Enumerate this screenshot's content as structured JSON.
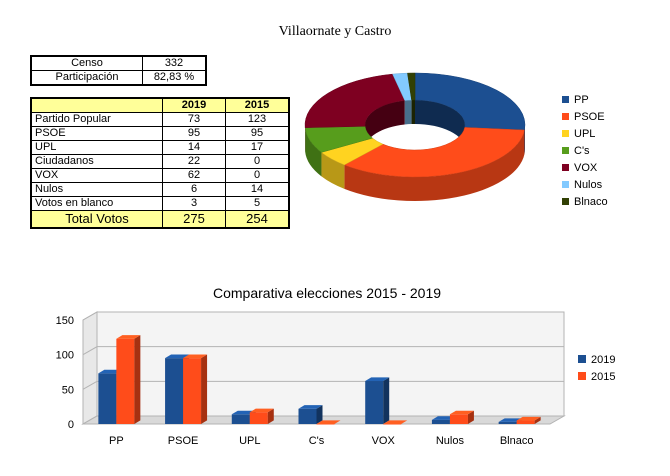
{
  "title": "Villaornate y Castro",
  "censo": {
    "rows": [
      {
        "label": "Censo",
        "value": "332"
      },
      {
        "label": "Participación",
        "value": "82,83 %"
      }
    ]
  },
  "votes_table": {
    "headers": [
      "",
      "2019",
      "2015"
    ],
    "rows": [
      {
        "party": "Partido Popular",
        "v2019": "73",
        "v2015": "123"
      },
      {
        "party": "PSOE",
        "v2019": "95",
        "v2015": "95"
      },
      {
        "party": "UPL",
        "v2019": "14",
        "v2015": "17"
      },
      {
        "party": "Ciudadanos",
        "v2019": "22",
        "v2015": "0"
      },
      {
        "party": "VOX",
        "v2019": "62",
        "v2015": "0"
      },
      {
        "party": "Nulos",
        "v2019": "6",
        "v2015": "14"
      },
      {
        "party": "Votos en blanco",
        "v2019": "3",
        "v2015": "5"
      }
    ],
    "total": {
      "label": "Total Votos",
      "v2019": "275",
      "v2015": "254"
    }
  },
  "chart_data": [
    {
      "type": "pie",
      "title": "",
      "categories": [
        "PP",
        "PSOE",
        "UPL",
        "C's",
        "VOX",
        "Nulos",
        "Blnaco"
      ],
      "values": [
        73,
        95,
        14,
        22,
        62,
        6,
        3
      ],
      "colors": [
        "#1c4f91",
        "#ff4c1a",
        "#ffd320",
        "#579d1c",
        "#7e0021",
        "#83caff",
        "#314004"
      ],
      "legend_position": "right"
    },
    {
      "type": "bar",
      "title": "Comparativa elecciones 2015 - 2019",
      "categories": [
        "PP",
        "PSOE",
        "UPL",
        "C's",
        "VOX",
        "Nulos",
        "Blnaco"
      ],
      "series": [
        {
          "name": "2019",
          "values": [
            73,
            95,
            14,
            22,
            62,
            6,
            3
          ],
          "color": "#1c4f91"
        },
        {
          "name": "2015",
          "values": [
            123,
            95,
            17,
            0,
            0,
            14,
            5
          ],
          "color": "#ff4c1a"
        }
      ],
      "yticks": [
        "0",
        "50",
        "100",
        "150"
      ],
      "ylim": [
        0,
        150
      ],
      "legend_position": "right"
    }
  ]
}
